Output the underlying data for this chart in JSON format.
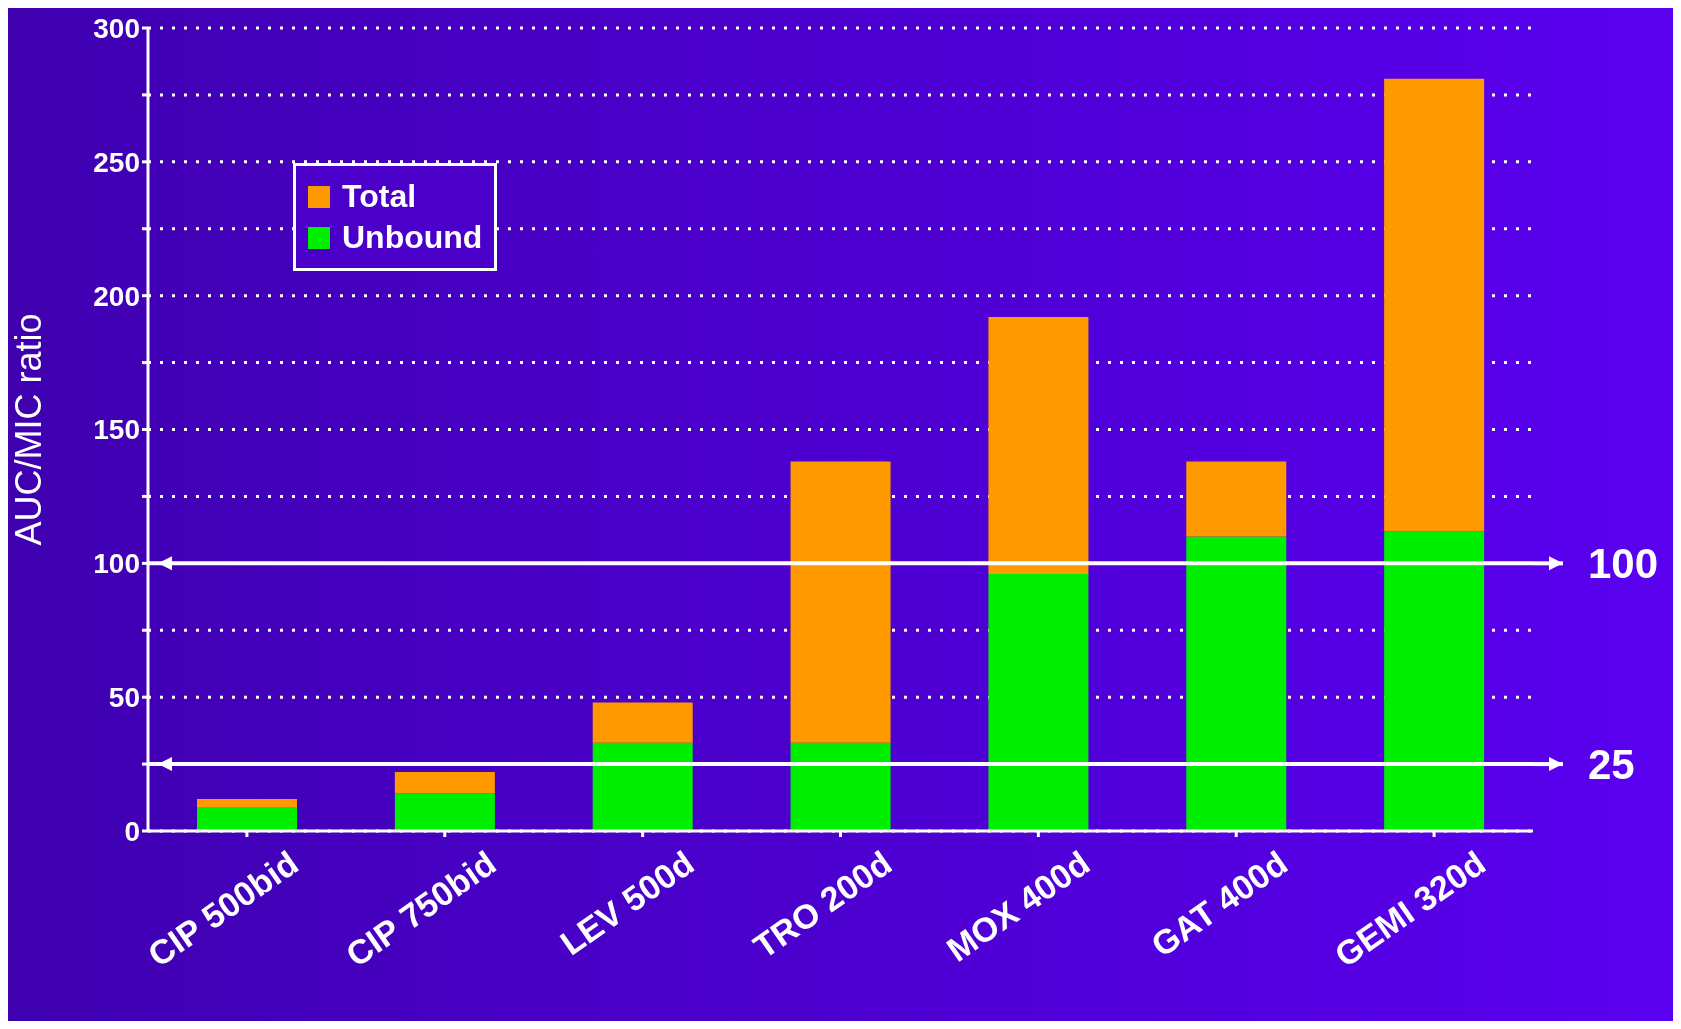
{
  "chart_data": {
    "type": "bar",
    "ylabel": "AUC/MIC ratio",
    "stacked": true,
    "categories": [
      "CIP 500bid",
      "CIP 750bid",
      "LEV 500d",
      "TRO 200d",
      "MOX 400d",
      "GAT 400d",
      "GEMI 320d"
    ],
    "series": [
      {
        "name": "Unbound",
        "color": "#00ee00",
        "values": [
          9,
          14,
          33,
          33,
          96,
          110,
          112
        ]
      },
      {
        "name": "Total",
        "color": "#ff9900",
        "values": [
          3,
          8,
          15,
          105,
          96,
          28,
          169
        ]
      }
    ],
    "ylim": [
      0,
      300
    ],
    "yticks": [
      0,
      {
        "value": 25,
        "label": null
      },
      50,
      {
        "value": 75,
        "label": null
      },
      100,
      {
        "value": 125,
        "label": null
      },
      150,
      {
        "value": 175,
        "label": null
      },
      200,
      {
        "value": 225,
        "label": null
      },
      250,
      {
        "value": 275,
        "label": null
      },
      300
    ],
    "grid": "y",
    "legend": "top left",
    "ref_lines": [
      {
        "axis": "y",
        "value": 100,
        "label": "100",
        "color": "#ffffff"
      },
      {
        "axis": "y",
        "value": 25,
        "label": "25",
        "color": "#ffffff"
      }
    ]
  }
}
